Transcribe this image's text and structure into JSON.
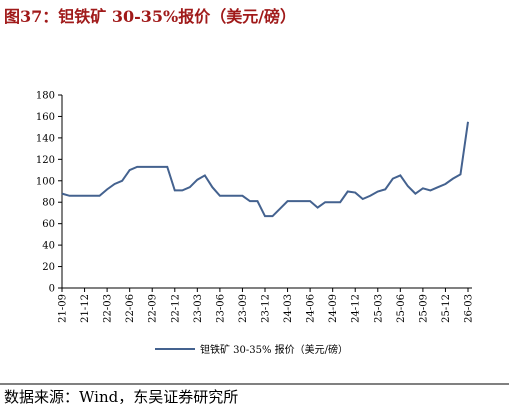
{
  "chart_data": {
    "type": "line",
    "title": "图37：钽铁矿 30-35%报价（美元/磅）",
    "source": "数据来源：Wind，东吴证券研究所",
    "categories": [
      "21-09",
      null,
      null,
      "21-12",
      null,
      null,
      "22-03",
      null,
      null,
      "22-06",
      null,
      null,
      "22-09",
      null,
      null,
      "22-12",
      null,
      null,
      "23-03",
      null,
      null,
      "23-06",
      null,
      null,
      "23-09",
      null,
      null,
      "23-12",
      null,
      null,
      "24-03",
      null,
      null,
      "24-06",
      null,
      null,
      "24-09",
      null,
      null,
      "24-12",
      null,
      null,
      "25-03",
      null,
      null,
      "25-06",
      null,
      null,
      "25-09",
      null,
      null,
      "25-12",
      null,
      null,
      "26-03"
    ],
    "series": [
      {
        "name": "钽铁矿 30-35% 报价（美元/磅）",
        "color": "#44628f",
        "values": [
          88,
          86,
          86,
          86,
          86,
          86,
          92,
          97,
          100,
          110,
          113,
          113,
          113,
          113,
          113,
          91,
          91,
          94,
          101,
          105,
          94,
          86,
          86,
          86,
          86,
          81,
          81,
          67,
          67,
          74,
          81,
          81,
          81,
          81,
          75,
          80,
          80,
          80,
          90,
          89,
          83,
          86,
          90,
          92,
          102,
          105,
          95,
          88,
          93,
          91,
          94,
          97,
          102,
          106,
          155
        ]
      }
    ],
    "ylim": [
      0,
      180
    ],
    "yticks": [
      0,
      20,
      40,
      60,
      80,
      100,
      120,
      140,
      160,
      180
    ]
  }
}
